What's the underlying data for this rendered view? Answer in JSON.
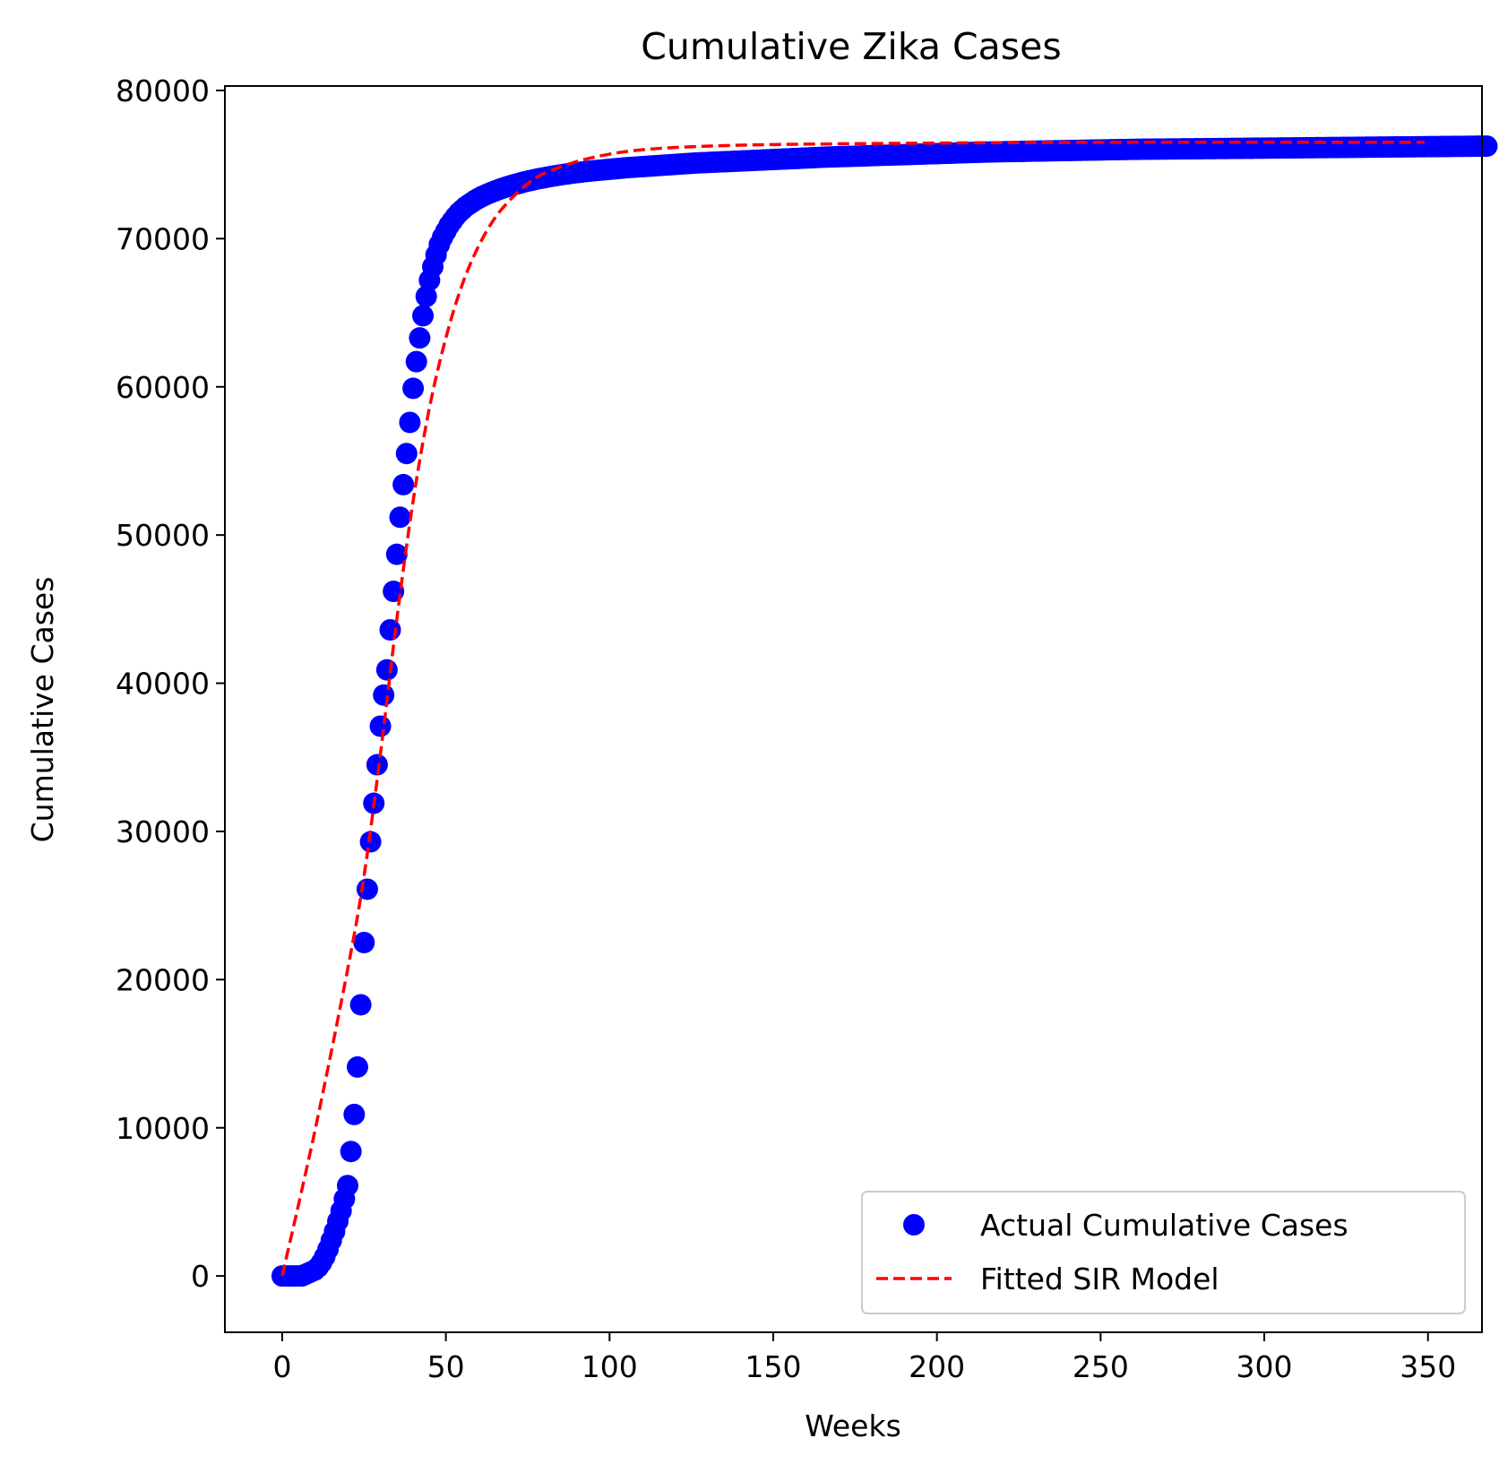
{
  "chart_data": {
    "type": "scatter",
    "title": "Cumulative Zika Cases",
    "xlabel": "Weeks",
    "ylabel": "Cumulative Cases",
    "xlim": [
      -17.5,
      366.5
    ],
    "ylim": [
      -3800,
      80300
    ],
    "x_ticks": [
      0,
      50,
      100,
      150,
      200,
      250,
      300,
      350
    ],
    "x_tick_labels": [
      "0",
      "50",
      "100",
      "150",
      "200",
      "250",
      "300",
      "350"
    ],
    "y_ticks": [
      0,
      10000,
      20000,
      30000,
      40000,
      50000,
      60000,
      70000,
      80000
    ],
    "y_tick_labels": [
      "0",
      "10000",
      "20000",
      "30000",
      "40000",
      "50000",
      "60000",
      "70000",
      "80000"
    ],
    "grid": false,
    "legend_position": "lower-right",
    "colors": {
      "actual": "#0000ff",
      "model": "#ff0000"
    },
    "series": [
      {
        "name": "Actual Cumulative Cases",
        "kind": "scatter",
        "marker": "circle",
        "color": "#0000ff",
        "x_start": 0,
        "x_step": 1,
        "y": [
          0,
          0,
          0,
          0,
          0,
          0,
          0,
          100,
          200,
          300,
          400,
          600,
          900,
          1300,
          1800,
          2400,
          3000,
          3700,
          4400,
          5200,
          6100,
          8400,
          10900,
          14100,
          18300,
          22500,
          26100,
          29300,
          31900,
          34500,
          37100,
          39200,
          40900,
          43600,
          46200,
          48700,
          51200,
          53400,
          55500,
          57600,
          59900,
          61700,
          63300,
          64800,
          66100,
          67200,
          68100,
          68900,
          69600,
          70100,
          70500,
          70900,
          71200,
          71500,
          71750,
          71950,
          72150,
          72300,
          72450,
          72600,
          72720,
          72840,
          72940,
          73040,
          73130,
          73220,
          73300,
          73380,
          73450,
          73520,
          73590,
          73650,
          73710,
          73770,
          73830,
          73880,
          73930,
          73980,
          74030,
          74070,
          74110,
          74150,
          74190,
          74230,
          74265,
          74300,
          74335,
          74365,
          74395,
          74425,
          74455,
          74480,
          74505,
          74530,
          74555,
          74580,
          74600,
          74620,
          74640,
          74660,
          74680,
          74700,
          74720,
          74740,
          74760,
          74780,
          74800,
          74815,
          74830,
          74845,
          74860,
          74875,
          74890,
          74905,
          74920,
          74935,
          74950,
          74965,
          74980,
          74995,
          75010,
          75025,
          75040,
          75055,
          75070,
          75085,
          75100,
          75110,
          75120,
          75130,
          75140,
          75150,
          75160,
          75170,
          75180,
          75190,
          75200,
          75210,
          75220,
          75230,
          75240,
          75250,
          75260,
          75270,
          75280,
          75290,
          75300,
          75310,
          75320,
          75330,
          75340,
          75350,
          75360,
          75370,
          75380,
          75390,
          75400,
          75410,
          75420,
          75430,
          75440,
          75450,
          75460,
          75470,
          75480,
          75490,
          75500,
          75507,
          75514,
          75521,
          75528,
          75535,
          75542,
          75549,
          75556,
          75563,
          75570,
          75577,
          75584,
          75591,
          75598,
          75605,
          75612,
          75619,
          75626,
          75633,
          75640,
          75647,
          75654,
          75661,
          75668,
          75675,
          75682,
          75689,
          75696,
          75703,
          75710,
          75717,
          75724,
          75731,
          75738,
          75745,
          75752,
          75759,
          75766,
          75773,
          75780,
          75787,
          75794,
          75801,
          75808,
          75815,
          75822,
          75829,
          75836,
          75843,
          75850,
          75854,
          75858,
          75862,
          75866,
          75870,
          75874,
          75878,
          75882,
          75886,
          75890,
          75894,
          75898,
          75902,
          75906,
          75910,
          75914,
          75918,
          75922,
          75926,
          75930,
          75934,
          75938,
          75942,
          75946,
          75950,
          75954,
          75958,
          75962,
          75966,
          75970,
          75974,
          75978,
          75982,
          75986,
          75990,
          75994,
          75998,
          76002,
          76006,
          76010,
          76014,
          76018,
          76022,
          76026,
          76030,
          76032,
          76034,
          76036,
          76038,
          76040,
          76042,
          76044,
          76046,
          76048,
          76050,
          76052,
          76054,
          76056,
          76058,
          76060,
          76062,
          76064,
          76066,
          76068,
          76070,
          76072,
          76074,
          76076,
          76078,
          76080,
          76082,
          76084,
          76086,
          76088,
          76090,
          76092,
          76094,
          76096,
          76098,
          76100,
          76102,
          76104,
          76106,
          76108,
          76110,
          76112,
          76114,
          76116,
          76118,
          76120,
          76122,
          76124,
          76126,
          76128,
          76130,
          76132,
          76134,
          76136,
          76138,
          76140,
          76142,
          76144,
          76146,
          76148,
          76150,
          76152,
          76154,
          76156,
          76158,
          76160,
          76162,
          76164,
          76166,
          76168,
          76170,
          76172,
          76174,
          76176,
          76178,
          76180,
          76182,
          76184,
          76186,
          76188,
          76190,
          76192,
          76194,
          76196,
          76198,
          76200,
          76202,
          76204,
          76206,
          76208,
          76210,
          76212,
          76214,
          76216,
          76218,
          76220,
          76222,
          76224,
          76226,
          76228,
          76230,
          76232,
          76234,
          76236,
          76238,
          76240,
          76242,
          76244
        ]
      },
      {
        "name": "Fitted SIR Model",
        "kind": "line",
        "style": "dashed",
        "color": "#ff0000",
        "points": [
          [
            0,
            0
          ],
          [
            10,
            9800
          ],
          [
            20,
            20700
          ],
          [
            25,
            27000
          ],
          [
            30,
            35200
          ],
          [
            35,
            44300
          ],
          [
            40,
            52300
          ],
          [
            45,
            58600
          ],
          [
            50,
            63300
          ],
          [
            55,
            66900
          ],
          [
            60,
            69500
          ],
          [
            65,
            71400
          ],
          [
            70,
            72700
          ],
          [
            75,
            73700
          ],
          [
            80,
            74400
          ],
          [
            90,
            75200
          ],
          [
            100,
            75700
          ],
          [
            110,
            76000
          ],
          [
            125,
            76200
          ],
          [
            150,
            76350
          ],
          [
            200,
            76450
          ],
          [
            250,
            76500
          ],
          [
            349,
            76500
          ]
        ]
      }
    ]
  }
}
